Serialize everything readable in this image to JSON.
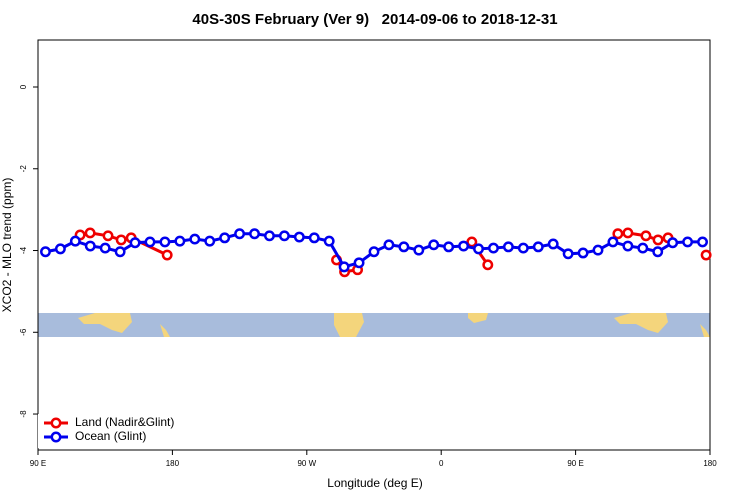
{
  "chart_data": {
    "type": "line",
    "title": "40S-30S February (Ver 9)   2014-09-06 to 2018-12-31",
    "xlabel": "Longitude (deg E)",
    "ylabel": "XCO2 - MLO trend (ppm)",
    "xlim": [
      90,
      540
    ],
    "ylim": [
      -8.88,
      1.15
    ],
    "xticks": [
      {
        "value": 90,
        "label": "90 E"
      },
      180,
      {
        "value": 270,
        "label": "90 W"
      },
      {
        "value": 360,
        "label": "0"
      },
      {
        "value": 450,
        "label": "90 E"
      },
      {
        "value": 540,
        "label": "180"
      }
    ],
    "yticks": [
      0,
      -2,
      -4,
      -6,
      -8
    ],
    "legend": "bottom-left",
    "series": [
      {
        "name": "Land (Nadir&Glint)",
        "color": "#ee0000",
        "x": [
          118.2,
          124.9,
          136.9,
          145.7,
          152.4,
          176.5,
          null,
          289.9,
          295.3,
          304.0,
          null,
          380.5,
          391.2,
          null,
          478.3,
          485.0,
          497.1,
          505.2,
          511.9,
          null,
          537.4
        ],
        "values": [
          -3.62,
          -3.57,
          -3.64,
          -3.74,
          -3.69,
          -4.11,
          null,
          -4.23,
          -4.52,
          -4.47,
          null,
          -3.79,
          -4.35,
          null,
          -3.59,
          -3.57,
          -3.64,
          -3.74,
          -3.69,
          null,
          -4.11
        ]
      },
      {
        "name": "Ocean (Glint)",
        "color": "#0000ee",
        "x": [
          95,
          105,
          115,
          125,
          135,
          145,
          155,
          165,
          175,
          185,
          195,
          205,
          215,
          225,
          235,
          245,
          255,
          265,
          275,
          285,
          295,
          305,
          315,
          325,
          335,
          345,
          355,
          365,
          375,
          385,
          395,
          405,
          415,
          425,
          435,
          445,
          455,
          465,
          475,
          485,
          495,
          505,
          515,
          525,
          535
        ],
        "values": [
          -4.03,
          -3.96,
          -3.77,
          -3.89,
          -3.94,
          -4.03,
          -3.81,
          -3.79,
          -3.79,
          -3.77,
          -3.72,
          -3.77,
          -3.69,
          -3.59,
          -3.59,
          -3.64,
          -3.64,
          -3.67,
          -3.69,
          -3.77,
          -4.4,
          -4.3,
          -4.03,
          -3.86,
          -3.91,
          -3.99,
          -3.86,
          -3.91,
          -3.89,
          -3.96,
          -3.94,
          -3.91,
          -3.94,
          -3.91,
          -3.84,
          -4.08,
          -4.06,
          -3.99,
          -3.79,
          -3.89,
          -3.94,
          -4.03,
          -3.81,
          -3.79,
          -3.79
        ]
      }
    ]
  }
}
